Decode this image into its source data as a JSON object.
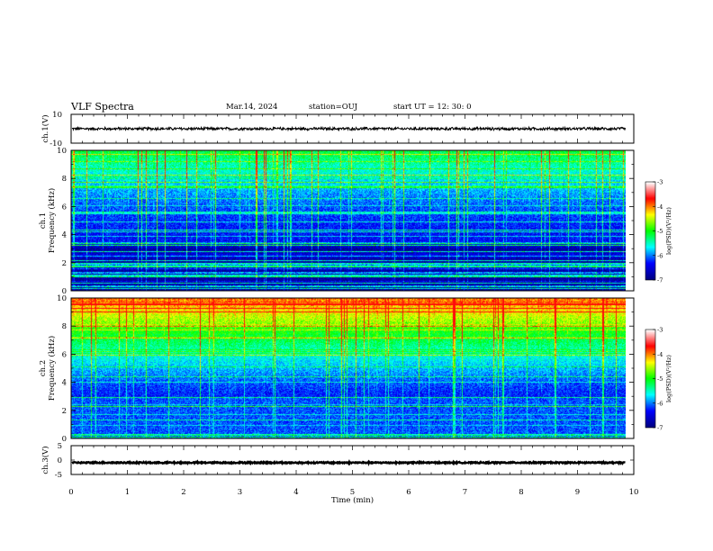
{
  "header": {
    "title": "VLF Spectra",
    "date": "Mar.14, 2024",
    "station": "station=OUJ",
    "start": "start UT =  12: 30: 0"
  },
  "chart_data": [
    {
      "type": "line",
      "panel": "ch1-waveform",
      "ylabel": "ch.1(V)",
      "ylim": [
        -10,
        10
      ],
      "yticks": [
        "10",
        "-10"
      ],
      "xlim": [
        0,
        10
      ],
      "x_end": 9.85,
      "baseline": 0,
      "noise_amplitude": 1.1
    },
    {
      "type": "heatmap",
      "panel": "ch1-spectrogram",
      "ylabel": "ch.1\nFrequency (kHz)",
      "ylim": [
        0,
        10
      ],
      "yticks": [
        0,
        2,
        4,
        6,
        8,
        10
      ],
      "xlim": [
        0,
        10
      ],
      "x_end": 9.85,
      "colorbar": {
        "label": "log(PSD)(V²/Hz)",
        "range": [
          -7,
          -3
        ],
        "ticks": [
          "-3",
          "-4",
          "-5",
          "-6",
          "-7"
        ]
      }
    },
    {
      "type": "heatmap",
      "panel": "ch2-spectrogram",
      "ylabel": "ch.2\nFrequency (kHz)",
      "ylim": [
        0,
        10
      ],
      "yticks": [
        0,
        2,
        4,
        6,
        8,
        10
      ],
      "xlim": [
        0,
        10
      ],
      "x_end": 9.85,
      "colorbar": {
        "label": "log(PSD)(V²/Hz)",
        "range": [
          -7,
          -3
        ],
        "ticks": [
          "-3",
          "-4",
          "-5",
          "-6",
          "-7"
        ]
      }
    },
    {
      "type": "line",
      "panel": "ch3-waveform",
      "ylabel": "ch.3(V)",
      "ylim": [
        -5,
        5
      ],
      "yticks": [
        "5",
        "0",
        "-5"
      ],
      "xlim": [
        0,
        10
      ],
      "x_end": 9.85,
      "baseline": -0.9,
      "noise_amplitude": 0.25
    }
  ],
  "xaxis": {
    "label": "Time (min)",
    "ticks": [
      "0",
      "1",
      "2",
      "3",
      "4",
      "5",
      "6",
      "7",
      "8",
      "9",
      "10"
    ]
  },
  "colors": {
    "colormap": [
      "#000080",
      "#0000ff",
      "#00ffff",
      "#00ff00",
      "#ffff00",
      "#ff0000",
      "#ffffff"
    ]
  }
}
